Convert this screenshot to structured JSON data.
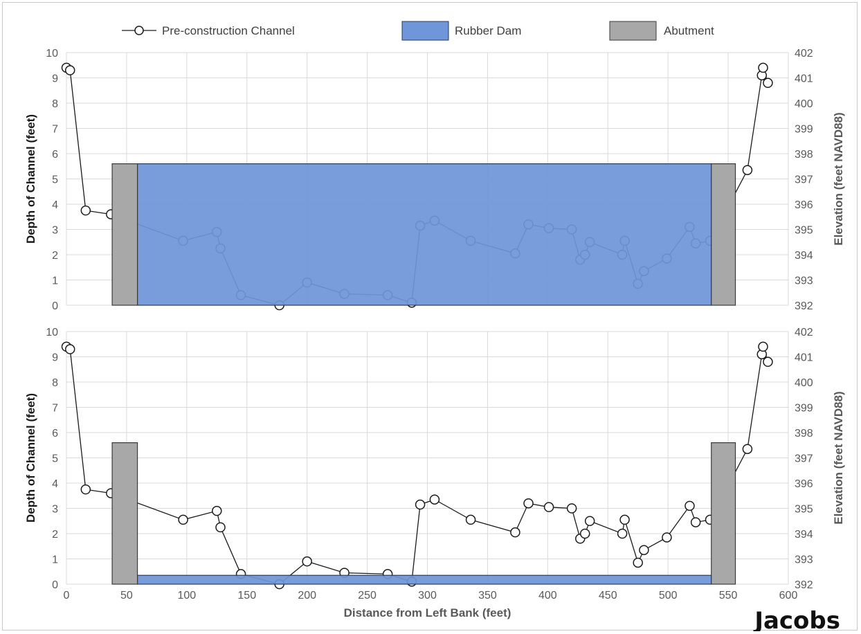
{
  "chart_data": [
    {
      "type": "line",
      "panel": "top",
      "xlabel": "",
      "ylabel": "Depth of Channel (feet)",
      "y2label": "Elevation (feet NAVD88)",
      "xlim": [
        0,
        600
      ],
      "ylim": [
        0,
        10
      ],
      "y2lim": [
        392,
        402
      ],
      "x_ticks": [
        "0",
        "50",
        "100",
        "150",
        "200",
        "250",
        "300",
        "350",
        "400",
        "450",
        "500",
        "550",
        "600"
      ],
      "y_ticks": [
        "0",
        "1",
        "2",
        "3",
        "4",
        "5",
        "6",
        "7",
        "8",
        "9",
        "10"
      ],
      "y2_ticks": [
        "392",
        "393",
        "394",
        "395",
        "396",
        "397",
        "398",
        "399",
        "400",
        "401",
        "402"
      ],
      "grid": true,
      "legend_position": "top",
      "series": [
        {
          "name": "Pre-construction Channel",
          "x": [
            0,
            3,
            16,
            37,
            97,
            125,
            128,
            145,
            177,
            200,
            231,
            267,
            287,
            294,
            306,
            336,
            373,
            384,
            401,
            420,
            427,
            431,
            435,
            462,
            464,
            475,
            480,
            499,
            518,
            523,
            535,
            566,
            578,
            579,
            583
          ],
          "y": [
            9.4,
            9.3,
            3.75,
            3.6,
            2.55,
            2.9,
            2.25,
            0.4,
            0.0,
            0.9,
            0.45,
            0.4,
            0.1,
            3.15,
            3.35,
            2.55,
            2.05,
            3.2,
            3.05,
            3.0,
            1.8,
            2.0,
            2.5,
            2.0,
            2.55,
            0.85,
            1.35,
            1.85,
            3.1,
            2.45,
            2.55,
            5.35,
            9.1,
            9.4,
            8.8
          ]
        }
      ],
      "rubber_dam": {
        "name": "Rubber Dam",
        "x_start": 59,
        "x_end": 536,
        "height": 5.6
      },
      "abutments": {
        "name": "Abutment",
        "spans": [
          [
            38,
            59
          ],
          [
            536,
            556
          ]
        ],
        "height": 5.6
      }
    },
    {
      "type": "line",
      "panel": "bottom",
      "xlabel": "Distance from Left Bank (feet)",
      "ylabel": "Depth of Channel (feet)",
      "y2label": "Elevation (feet NAVD88)",
      "xlim": [
        0,
        600
      ],
      "ylim": [
        0,
        10
      ],
      "y2lim": [
        392,
        402
      ],
      "x_ticks": [
        "0",
        "50",
        "100",
        "150",
        "200",
        "250",
        "300",
        "350",
        "400",
        "450",
        "500",
        "550",
        "600"
      ],
      "y_ticks": [
        "0",
        "1",
        "2",
        "3",
        "4",
        "5",
        "6",
        "7",
        "8",
        "9",
        "10"
      ],
      "y2_ticks": [
        "392",
        "393",
        "394",
        "395",
        "396",
        "397",
        "398",
        "399",
        "400",
        "401",
        "402"
      ],
      "grid": true,
      "series": [
        {
          "name": "Pre-construction Channel",
          "x": [
            0,
            3,
            16,
            37,
            97,
            125,
            128,
            145,
            177,
            200,
            231,
            267,
            287,
            294,
            306,
            336,
            373,
            384,
            401,
            420,
            427,
            431,
            435,
            462,
            464,
            475,
            480,
            499,
            518,
            523,
            535,
            566,
            578,
            579,
            583
          ],
          "y": [
            9.4,
            9.3,
            3.75,
            3.6,
            2.55,
            2.9,
            2.25,
            0.4,
            0.0,
            0.9,
            0.45,
            0.4,
            0.1,
            3.15,
            3.35,
            2.55,
            2.05,
            3.2,
            3.05,
            3.0,
            1.8,
            2.0,
            2.5,
            2.0,
            2.55,
            0.85,
            1.35,
            1.85,
            3.1,
            2.45,
            2.55,
            5.35,
            9.1,
            9.4,
            8.8
          ]
        }
      ],
      "rubber_dam": {
        "name": "Rubber Dam",
        "x_start": 59,
        "x_end": 536,
        "height": 0.35
      },
      "abutments": {
        "name": "Abutment",
        "spans": [
          [
            38,
            59
          ],
          [
            536,
            556
          ]
        ],
        "height": 5.6
      }
    }
  ],
  "legend": {
    "items": [
      {
        "label": "Pre-construction Channel",
        "kind": "line-marker"
      },
      {
        "label": "Rubber Dam",
        "kind": "box"
      },
      {
        "label": "Abutment",
        "kind": "box"
      }
    ]
  },
  "logo": {
    "text": "Jacobs"
  },
  "colors": {
    "dam_fill": "#6f96d8",
    "dam_stroke": "#2a3b5e",
    "abutment_fill": "#a8a8a8",
    "abutment_stroke": "#3a3a3a",
    "series_line": "#1a1a1a",
    "marker_fill": "#ffffff",
    "grid": "#d9d9d9",
    "tick_text": "#595959",
    "axis_title": "#1a1a1a",
    "axis_title_right": "#595959"
  }
}
